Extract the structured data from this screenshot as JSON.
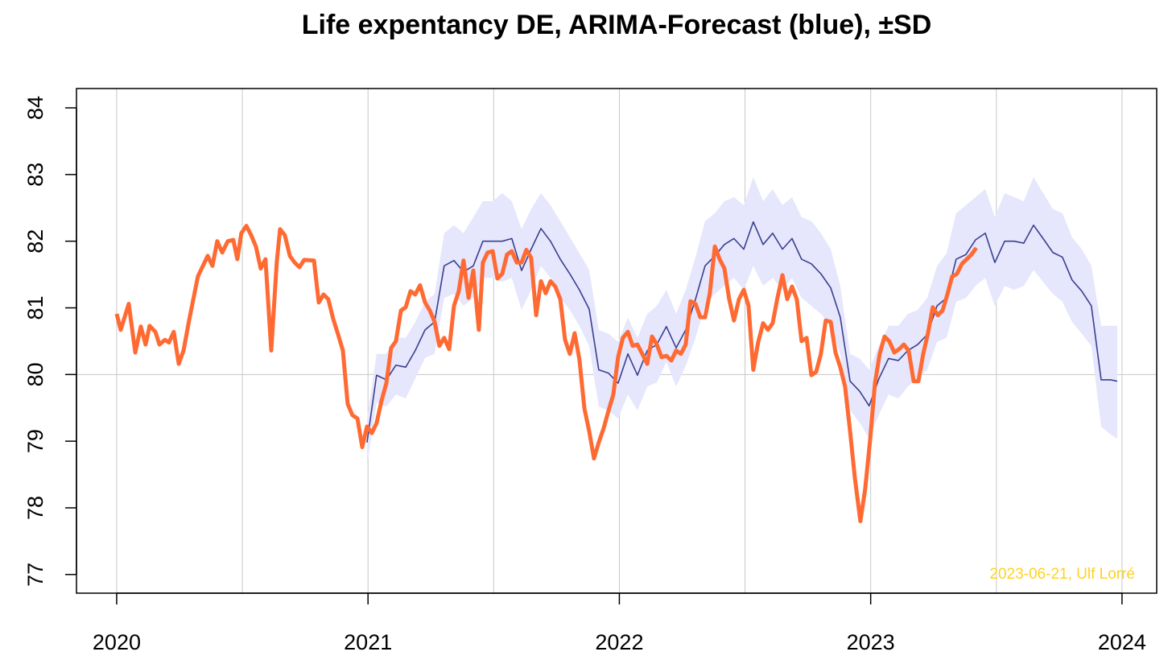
{
  "chart_data": {
    "type": "line",
    "title": "Life expentancy DE, ARIMA-Forecast (blue), ±SD",
    "annotation": "2023-06-21, Ulf Lorré",
    "annotation_color": "#ffd21f",
    "xlim": [
      2019.84,
      2024.138
    ],
    "ylim": [
      76.72,
      84.29
    ],
    "xticks": [
      2020,
      2021,
      2022,
      2023,
      2024
    ],
    "yticks": [
      77,
      78,
      79,
      80,
      81,
      82,
      83,
      84
    ],
    "grid_x": [
      2020,
      2020.5,
      2021,
      2021.5,
      2022,
      2022.5,
      2023,
      2023.5,
      2024
    ],
    "grid_y": [
      80
    ],
    "series": [
      {
        "color": "#3a3f8f",
        "band_color": "#e6e6fc",
        "x": [
          2020.996,
          2021.034,
          2021.073,
          2021.111,
          2021.15,
          2021.188,
          2021.227,
          2021.265,
          2021.303,
          2021.342,
          2021.38,
          2021.419,
          2021.457,
          2021.496,
          2021.534,
          2021.572,
          2021.611,
          2021.649,
          2021.688,
          2021.726,
          2021.765,
          2021.803,
          2021.841,
          2021.88,
          2021.918,
          2021.957,
          2021.995,
          2022.034,
          2022.072,
          2022.111,
          2022.149,
          2022.187,
          2022.226,
          2022.264,
          2022.303,
          2022.341,
          2022.38,
          2022.418,
          2022.456,
          2022.495,
          2022.533,
          2022.572,
          2022.61,
          2022.649,
          2022.687,
          2022.725,
          2022.764,
          2022.802,
          2022.841,
          2022.879,
          2022.918,
          2022.956,
          2022.994,
          2023.033,
          2023.071,
          2023.11,
          2023.148,
          2023.187,
          2023.225,
          2023.264,
          2023.302,
          2023.34,
          2023.379,
          2023.417,
          2023.456,
          2023.494,
          2023.533,
          2023.571,
          2023.609,
          2023.648,
          2023.686,
          2023.725,
          2023.763,
          2023.801,
          2023.84,
          2023.878,
          2023.917,
          2023.955,
          2023.981
        ],
        "values": [
          78.98,
          79.99,
          79.92,
          80.14,
          80.11,
          80.36,
          80.67,
          80.79,
          81.63,
          81.71,
          81.54,
          81.63,
          82.0,
          82.0,
          82.0,
          82.04,
          81.56,
          81.88,
          82.19,
          82.0,
          81.73,
          81.51,
          81.27,
          80.98,
          80.07,
          80.02,
          79.87,
          80.31,
          79.99,
          80.36,
          80.45,
          80.72,
          80.4,
          80.67,
          81.13,
          81.63,
          81.78,
          81.95,
          82.04,
          81.88,
          82.29,
          81.95,
          82.12,
          81.88,
          82.04,
          81.73,
          81.66,
          81.51,
          81.3,
          80.86,
          79.9,
          79.75,
          79.53,
          79.94,
          80.24,
          80.21,
          80.36,
          80.45,
          80.6,
          81.03,
          81.15,
          81.73,
          81.8,
          82.02,
          82.12,
          81.68,
          82.0,
          82.0,
          81.97,
          82.24,
          82.04,
          81.83,
          81.76,
          81.42,
          81.25,
          81.03,
          79.92,
          79.92,
          79.9
        ],
        "upper": [
          79.34,
          80.31,
          80.31,
          80.55,
          80.55,
          80.79,
          81.09,
          81.21,
          82.12,
          82.24,
          82.12,
          82.36,
          82.6,
          82.6,
          82.72,
          82.6,
          82.18,
          82.48,
          82.72,
          82.54,
          82.3,
          82.06,
          81.82,
          81.57,
          80.67,
          80.61,
          80.49,
          80.85,
          80.55,
          80.91,
          81.03,
          81.27,
          80.91,
          81.27,
          81.76,
          82.3,
          82.42,
          82.6,
          82.66,
          82.54,
          82.96,
          82.6,
          82.78,
          82.54,
          82.66,
          82.36,
          82.3,
          82.12,
          81.88,
          81.33,
          80.31,
          80.24,
          80.07,
          80.43,
          80.73,
          80.73,
          80.91,
          80.97,
          81.15,
          81.63,
          81.82,
          82.42,
          82.54,
          82.66,
          82.78,
          82.36,
          82.72,
          82.66,
          82.6,
          82.96,
          82.72,
          82.48,
          82.42,
          82.06,
          81.88,
          81.63,
          80.73,
          80.73,
          80.73
        ],
        "lower": [
          78.64,
          79.58,
          79.52,
          79.7,
          79.64,
          79.94,
          80.25,
          80.31,
          81.15,
          81.21,
          81.03,
          81.15,
          81.45,
          81.45,
          81.39,
          81.45,
          80.97,
          81.27,
          81.63,
          81.45,
          81.15,
          80.97,
          80.73,
          80.43,
          79.52,
          79.46,
          79.34,
          79.7,
          79.46,
          79.82,
          79.88,
          80.19,
          79.82,
          80.13,
          80.55,
          81.03,
          81.21,
          81.33,
          81.45,
          81.27,
          81.63,
          81.33,
          81.45,
          81.27,
          81.45,
          81.15,
          81.03,
          80.91,
          80.73,
          80.31,
          79.46,
          79.28,
          79.04,
          79.4,
          79.7,
          79.64,
          79.82,
          79.94,
          80.07,
          80.49,
          80.55,
          81.09,
          81.15,
          81.33,
          81.45,
          81.03,
          81.33,
          81.27,
          81.33,
          81.57,
          81.39,
          81.21,
          81.09,
          80.79,
          80.61,
          80.43,
          79.22,
          79.1,
          79.04
        ],
        "width": 1.6
      },
      {
        "color": "#ff6a33",
        "x": [
          2020.0,
          2020.016,
          2020.048,
          2020.074,
          2020.096,
          2020.115,
          2020.131,
          2020.154,
          2020.17,
          2020.192,
          2020.208,
          2020.227,
          2020.247,
          2020.266,
          2020.288,
          2020.323,
          2020.362,
          2020.381,
          2020.4,
          2020.42,
          2020.442,
          2020.464,
          2020.48,
          2020.496,
          2020.516,
          2020.535,
          2020.554,
          2020.573,
          2020.592,
          2020.615,
          2020.637,
          2020.65,
          2020.669,
          2020.689,
          2020.708,
          2020.727,
          2020.746,
          2020.785,
          2020.804,
          2020.823,
          2020.842,
          2020.861,
          2020.881,
          2020.9,
          2020.919,
          2020.938,
          2020.958,
          2020.977,
          2020.996,
          2021.015,
          2021.034,
          2021.054,
          2021.073,
          2021.092,
          2021.111,
          2021.131,
          2021.15,
          2021.169,
          2021.188,
          2021.207,
          2021.227,
          2021.246,
          2021.265,
          2021.284,
          2021.303,
          2021.323,
          2021.342,
          2021.361,
          2021.38,
          2021.4,
          2021.419,
          2021.441,
          2021.457,
          2021.476,
          2021.496,
          2021.515,
          2021.534,
          2021.553,
          2021.572,
          2021.592,
          2021.611,
          2021.63,
          2021.649,
          2021.669,
          2021.688,
          2021.707,
          2021.726,
          2021.745,
          2021.765,
          2021.784,
          2021.803,
          2021.822,
          2021.841,
          2021.861,
          2021.88,
          2021.899,
          2021.918,
          2021.938,
          2021.957,
          2021.976,
          2021.995,
          2022.014,
          2022.034,
          2022.053,
          2022.072,
          2022.091,
          2022.111,
          2022.13,
          2022.149,
          2022.168,
          2022.187,
          2022.207,
          2022.226,
          2022.245,
          2022.264,
          2022.283,
          2022.303,
          2022.322,
          2022.341,
          2022.36,
          2022.38,
          2022.399,
          2022.418,
          2022.437,
          2022.456,
          2022.476,
          2022.495,
          2022.514,
          2022.533,
          2022.552,
          2022.572,
          2022.591,
          2022.61,
          2022.629,
          2022.649,
          2022.668,
          2022.687,
          2022.706,
          2022.725,
          2022.745,
          2022.764,
          2022.783,
          2022.802,
          2022.821,
          2022.841,
          2022.86,
          2022.879,
          2022.898,
          2022.918,
          2022.937,
          2022.959,
          2022.978,
          2022.998,
          2023.017,
          2023.036,
          2023.055,
          2023.074,
          2023.094,
          2023.113,
          2023.132,
          2023.151,
          2023.171,
          2023.19,
          2023.209,
          2023.228,
          2023.247,
          2023.267,
          2023.286,
          2023.305,
          2023.324,
          2023.343,
          2023.363,
          2023.382,
          2023.401,
          2023.42
        ],
        "values": [
          80.91,
          80.67,
          81.06,
          80.33,
          80.72,
          80.45,
          80.73,
          80.64,
          80.45,
          80.52,
          80.48,
          80.64,
          80.16,
          80.36,
          80.81,
          81.47,
          81.78,
          81.63,
          82.0,
          81.83,
          82.0,
          82.02,
          81.73,
          82.12,
          82.23,
          82.09,
          81.92,
          81.59,
          81.73,
          80.36,
          81.69,
          82.18,
          82.09,
          81.78,
          81.68,
          81.61,
          81.72,
          81.71,
          81.08,
          81.2,
          81.13,
          80.84,
          80.6,
          80.36,
          79.56,
          79.39,
          79.34,
          78.91,
          79.22,
          79.12,
          79.27,
          79.61,
          79.87,
          80.4,
          80.5,
          80.96,
          81.01,
          81.25,
          81.2,
          81.34,
          81.08,
          80.96,
          80.79,
          80.43,
          80.55,
          80.38,
          81.03,
          81.25,
          81.71,
          81.15,
          81.56,
          80.67,
          81.68,
          81.83,
          81.85,
          81.44,
          81.51,
          81.8,
          81.85,
          81.68,
          81.68,
          81.87,
          81.75,
          80.89,
          81.4,
          81.22,
          81.4,
          81.32,
          81.13,
          80.52,
          80.31,
          80.62,
          80.23,
          79.49,
          79.15,
          78.74,
          78.98,
          79.2,
          79.46,
          79.7,
          80.26,
          80.55,
          80.64,
          80.43,
          80.45,
          80.31,
          80.16,
          80.57,
          80.45,
          80.26,
          80.28,
          80.21,
          80.36,
          80.31,
          80.45,
          81.1,
          81.06,
          80.86,
          80.86,
          81.22,
          81.92,
          81.73,
          81.59,
          81.13,
          80.81,
          81.13,
          81.27,
          81.03,
          80.07,
          80.48,
          80.77,
          80.67,
          80.77,
          81.15,
          81.49,
          81.13,
          81.32,
          81.13,
          80.5,
          80.55,
          79.99,
          80.04,
          80.31,
          80.81,
          80.79,
          80.33,
          80.11,
          79.82,
          79.15,
          78.45,
          77.8,
          78.28,
          79.03,
          79.87,
          80.31,
          80.57,
          80.5,
          80.33,
          80.38,
          80.45,
          80.36,
          79.9,
          79.9,
          80.31,
          80.62,
          81.01,
          80.89,
          80.96,
          81.2,
          81.47,
          81.51,
          81.66,
          81.73,
          81.8,
          81.9
        ],
        "width": 5
      }
    ]
  }
}
